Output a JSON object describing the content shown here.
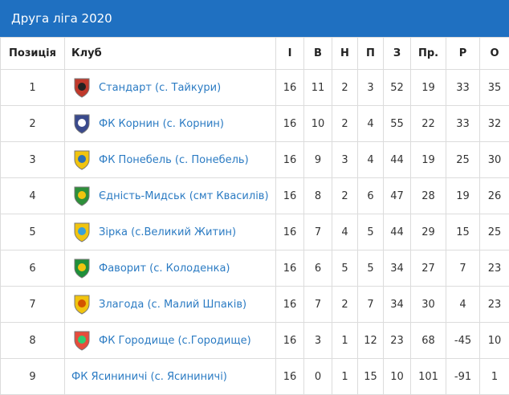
{
  "header": {
    "title": "Друга ліга 2020"
  },
  "table": {
    "columns": [
      "Позиція",
      "Клуб",
      "І",
      "В",
      "Н",
      "П",
      "З",
      "Пр.",
      "Р",
      "О"
    ],
    "rows": [
      [
        1,
        "Стандарт (с. Тайкури)",
        16,
        11,
        2,
        3,
        52,
        19,
        33,
        35
      ],
      [
        2,
        "ФК Корнин (с. Корнин)",
        16,
        10,
        2,
        4,
        55,
        22,
        33,
        32
      ],
      [
        3,
        "ФК Понебель (с. Понебель)",
        16,
        9,
        3,
        4,
        44,
        19,
        25,
        30
      ],
      [
        4,
        "Єдність-Мидськ (смт Квасилів)",
        16,
        8,
        2,
        6,
        47,
        28,
        19,
        26
      ],
      [
        5,
        "Зірка (с.Великий Житин)",
        16,
        7,
        4,
        5,
        44,
        29,
        15,
        25
      ],
      [
        6,
        "Фаворит (с. Колоденка)",
        16,
        6,
        5,
        5,
        34,
        27,
        7,
        23
      ],
      [
        7,
        "Злагода (с. Малий Шпаків)",
        16,
        7,
        2,
        7,
        34,
        30,
        4,
        23
      ],
      [
        8,
        "ФК Городище (с.Городище)",
        16,
        3,
        1,
        12,
        23,
        68,
        -45,
        10
      ],
      [
        9,
        "ФК Ясининичі (с. Ясининичі)",
        16,
        0,
        1,
        15,
        10,
        101,
        -91,
        1
      ]
    ]
  }
}
